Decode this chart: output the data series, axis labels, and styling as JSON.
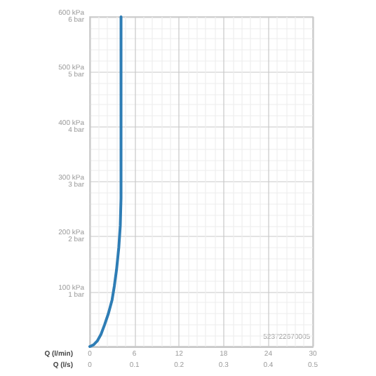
{
  "chart_data": {
    "type": "line",
    "xlabel": "Q (l/min)",
    "x2label": "Q (l/s)",
    "x": [
      0,
      0.5,
      1,
      1.5,
      2,
      2.5,
      3,
      3.3,
      3.6,
      3.9,
      4.1,
      4.2,
      4.2
    ],
    "series": [
      {
        "color": "#2e7db5",
        "values": [
          0,
          3,
          10,
          22,
          40,
          60,
          85,
          110,
          140,
          180,
          220,
          270,
          600
        ]
      }
    ],
    "xlim": [
      0,
      30
    ],
    "xticks": [
      0,
      6,
      12,
      18,
      24,
      30
    ],
    "x2lim": [
      0,
      0.5
    ],
    "x2ticks": [
      0,
      0.1,
      0.2,
      0.3,
      0.4,
      0.5
    ],
    "ylim": [
      0,
      600
    ],
    "yticks": [
      {
        "value": 0,
        "label": null
      },
      {
        "value": 100,
        "label": "100 kPa"
      },
      {
        "value": 200,
        "label": "200 kPa"
      },
      {
        "value": 300,
        "label": "300 kPa"
      },
      {
        "value": 400,
        "label": "400 kPa"
      },
      {
        "value": 500,
        "label": "500 kPa"
      },
      {
        "value": 600,
        "label": "600 kPa"
      }
    ],
    "y2lim": [
      0,
      6
    ],
    "y2ticks": [
      {
        "value": 0,
        "label": null
      },
      {
        "value": 1,
        "label": "1 bar"
      },
      {
        "value": 2,
        "label": "2 bar"
      },
      {
        "value": 3,
        "label": "3 bar"
      },
      {
        "value": 4,
        "label": "4 bar"
      },
      {
        "value": 5,
        "label": "5 bar"
      },
      {
        "value": 6,
        "label": "6 bar"
      }
    ],
    "grid": true,
    "marker": "none",
    "line_style": "solid",
    "annotations": [
      "523722670005"
    ]
  }
}
